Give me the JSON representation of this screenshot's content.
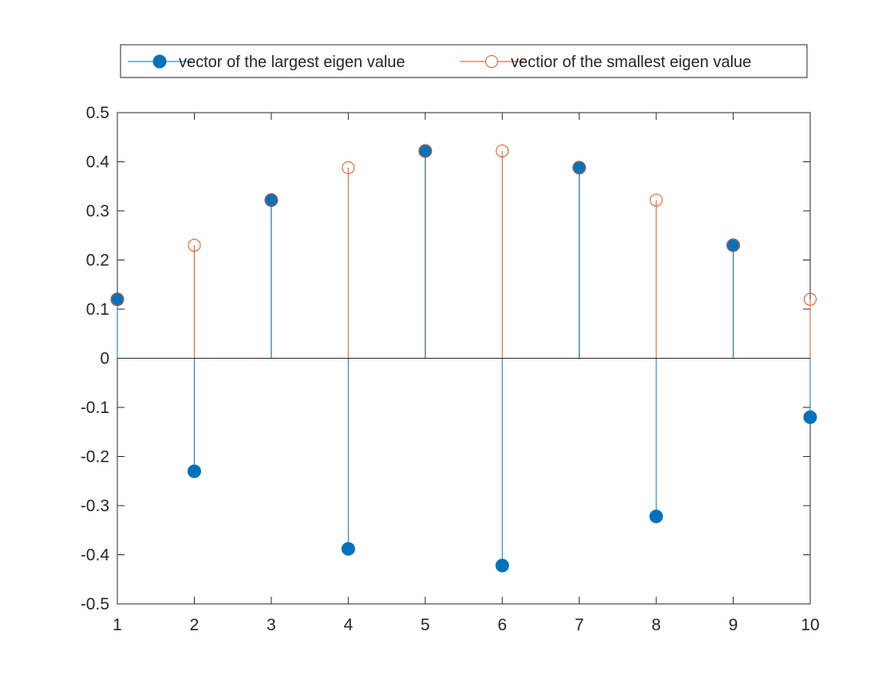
{
  "chart_data": {
    "type": "stem",
    "title": "",
    "xlabel": "",
    "ylabel": "",
    "xlim": [
      1,
      10
    ],
    "ylim": [
      -0.5,
      0.5
    ],
    "xticks": [
      1,
      2,
      3,
      4,
      5,
      6,
      7,
      8,
      9,
      10
    ],
    "yticks": [
      0.5,
      0.4,
      0.3,
      0.2,
      0.1,
      0,
      -0.1,
      -0.2,
      -0.3,
      -0.4,
      -0.5
    ],
    "ytick_labels": [
      "0.5",
      "0.4",
      "0.3",
      "0.2",
      "0.1",
      "0",
      "-0.1",
      "-0.2",
      "-0.3",
      "-0.4",
      "-0.5"
    ],
    "x": [
      1,
      2,
      3,
      4,
      5,
      6,
      7,
      8,
      9,
      10
    ],
    "grid": false,
    "legend_position": "top-center (outside, above axes)",
    "series": [
      {
        "name": "vector of the largest eigen value",
        "color": "#0072BD",
        "marker": "filled-circle",
        "values": [
          0.12,
          -0.23,
          0.322,
          -0.388,
          0.422,
          -0.422,
          0.388,
          -0.322,
          0.23,
          -0.12
        ]
      },
      {
        "name": "vectior of the smallest eigen value",
        "color": "#D95319",
        "marker": "open-circle",
        "values": [
          0.12,
          0.23,
          0.322,
          0.388,
          0.422,
          0.422,
          0.388,
          0.322,
          0.23,
          0.12
        ]
      }
    ]
  }
}
